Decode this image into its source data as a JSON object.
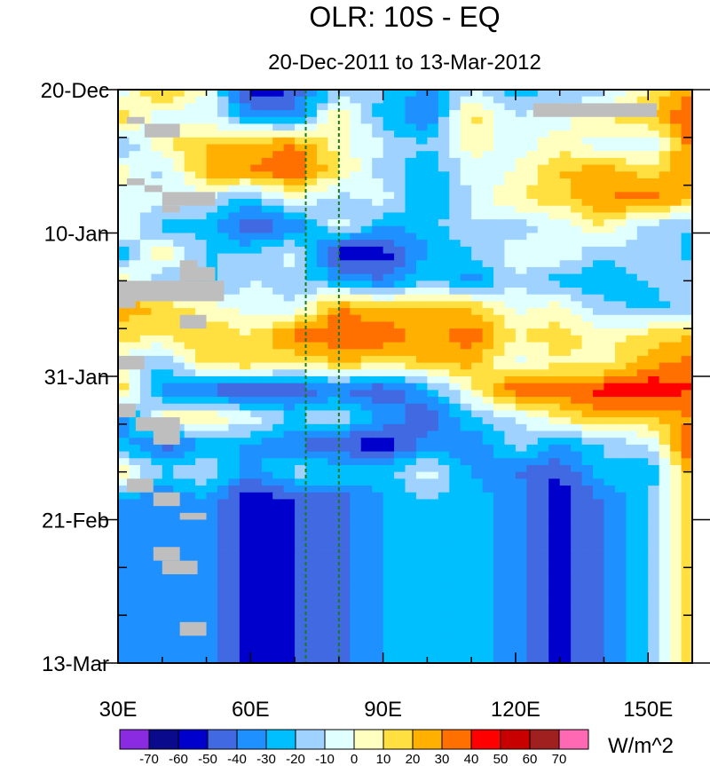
{
  "chart_data": {
    "type": "heatmap",
    "title": "OLR: 10S - EQ",
    "subtitle": "20-Dec-2011 to 13-Mar-2012",
    "xlabel": "",
    "ylabel": "",
    "x_range_deg_east": [
      30,
      160
    ],
    "x_ticks": [
      {
        "value": 30,
        "label": "30E"
      },
      {
        "value": 60,
        "label": "60E"
      },
      {
        "value": 90,
        "label": "90E"
      },
      {
        "value": 120,
        "label": "120E"
      },
      {
        "value": 150,
        "label": "150E"
      }
    ],
    "y_range_days_since_start": [
      0,
      84
    ],
    "y_ticks": [
      {
        "value": 0,
        "label": "20-Dec"
      },
      {
        "value": 21,
        "label": "10-Jan"
      },
      {
        "value": 42,
        "label": "31-Jan"
      },
      {
        "value": 63,
        "label": "21-Feb"
      },
      {
        "value": 84,
        "label": "13-Mar"
      }
    ],
    "reference_lines_lon": [
      72.5,
      80
    ],
    "colorbar": {
      "unit": "W/m^2",
      "levels": [
        -70,
        -60,
        -50,
        -40,
        -30,
        -20,
        -10,
        0,
        10,
        20,
        30,
        40,
        50,
        60,
        70
      ],
      "level_labels": [
        "-70",
        "-60",
        "-50",
        "-40",
        "-30",
        "-20",
        "-10",
        "0",
        "10",
        "20",
        "30",
        "40",
        "50",
        "60",
        "70"
      ],
      "colors": [
        "#8a2be2",
        "#0a0a8c",
        "#0000cd",
        "#4169e1",
        "#1e90ff",
        "#00bfff",
        "#a0d2ff",
        "#e0ffff",
        "#ffffc0",
        "#ffe040",
        "#ffb000",
        "#ff7000",
        "#ff0000",
        "#c80000",
        "#a02020",
        "#ff69b4"
      ]
    },
    "field_grid": {
      "lon_start": 30,
      "lon_step": 10,
      "day_start": 0,
      "day_step": 4,
      "rows": [
        [
          -10,
          25,
          0,
          -60,
          -50,
          -15,
          -20,
          -35,
          -10,
          -25,
          -20,
          -15,
          10,
          30
        ],
        [
          20,
          -10,
          -5,
          -30,
          -35,
          10,
          -25,
          -40,
          15,
          -10,
          -5,
          10,
          20,
          40
        ],
        [
          -25,
          10,
          20,
          25,
          30,
          5,
          -10,
          -20,
          5,
          -5,
          5,
          -5,
          -10,
          35
        ],
        [
          10,
          -15,
          25,
          30,
          40,
          10,
          -15,
          -30,
          -5,
          0,
          20,
          25,
          15,
          30
        ],
        [
          -10,
          -5,
          -10,
          -25,
          0,
          -15,
          -5,
          -30,
          -10,
          10,
          15,
          30,
          35,
          20
        ],
        [
          5,
          -25,
          -25,
          -50,
          -40,
          -5,
          -30,
          -25,
          -10,
          -15,
          -5,
          10,
          -15,
          -20
        ],
        [
          -30,
          10,
          -20,
          -20,
          -5,
          -60,
          -55,
          -30,
          -20,
          -5,
          0,
          -20,
          -10,
          -25
        ],
        [
          10,
          -20,
          -25,
          -10,
          -15,
          -30,
          -40,
          -20,
          -35,
          -10,
          -25,
          -30,
          -20,
          -10
        ],
        [
          25,
          20,
          5,
          -5,
          -10,
          30,
          20,
          25,
          20,
          -5,
          5,
          -15,
          -25,
          -15
        ],
        [
          15,
          10,
          20,
          10,
          35,
          40,
          40,
          25,
          35,
          10,
          15,
          5,
          15,
          20
        ],
        [
          -5,
          -20,
          15,
          20,
          10,
          20,
          15,
          20,
          25,
          -5,
          10,
          5,
          25,
          35
        ],
        [
          20,
          -35,
          -45,
          -55,
          -50,
          -40,
          -50,
          -30,
          5,
          40,
          35,
          45,
          50,
          40
        ],
        [
          -40,
          5,
          10,
          -5,
          -20,
          -10,
          -30,
          -50,
          -20,
          -10,
          10,
          25,
          20,
          30
        ],
        [
          -25,
          -45,
          -30,
          -30,
          -40,
          -50,
          -60,
          -35,
          -40,
          -15,
          -30,
          -20,
          -10,
          45
        ],
        [
          10,
          -20,
          -10,
          -35,
          -15,
          -20,
          -25,
          -5,
          -30,
          -40,
          -50,
          -20,
          -30,
          25
        ],
        [
          -30,
          -40,
          -30,
          -60,
          -50,
          -45,
          -30,
          -20,
          -25,
          -35,
          -55,
          -40,
          -20,
          20
        ]
      ]
    },
    "missing_data_color": "#bebebe"
  }
}
